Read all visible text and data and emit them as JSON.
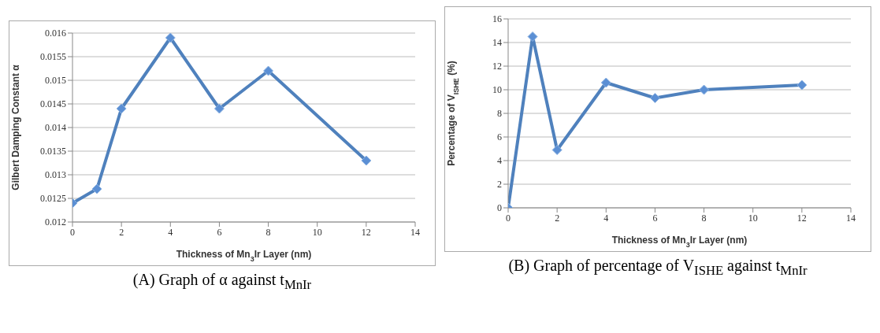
{
  "chart_data": [
    {
      "type": "line",
      "xlabel": "Thickness of Mn$_{3}$Ir Layer (nm)",
      "ylabel": "Gilbert Damping Constant α",
      "x": [
        0,
        1,
        2,
        4,
        6,
        8,
        12
      ],
      "series": [
        {
          "color": "#4f81bd",
          "values": [
            0.0124,
            0.0127,
            0.0144,
            0.0159,
            0.0144,
            0.0152,
            0.0133
          ]
        }
      ],
      "xlim": [
        0,
        14
      ],
      "xticks": [
        0,
        2,
        4,
        6,
        8,
        10,
        12,
        14
      ],
      "ylim": [
        0.012,
        0.016
      ],
      "yticks": [
        0.012,
        0.0125,
        0.013,
        0.0135,
        0.014,
        0.0145,
        0.015,
        0.0155,
        0.016
      ],
      "grid": "y",
      "marker": "diamond",
      "line_style": "solid",
      "legend": false,
      "annotations": [
        "(A) Graph of α against t$_{MnIr}$"
      ]
    },
    {
      "type": "line",
      "xlabel": "Thickness of Mn$_{3}$Ir Layer (nm)",
      "ylabel": "Percentage of V$_{ISHE}$ (%)",
      "x": [
        0,
        1,
        2,
        4,
        6,
        8,
        12
      ],
      "series": [
        {
          "color": "#4f81bd",
          "values": [
            0,
            14.5,
            4.9,
            10.6,
            9.3,
            10.0,
            10.4
          ]
        }
      ],
      "xlim": [
        0,
        14
      ],
      "xticks": [
        0,
        2,
        4,
        6,
        8,
        10,
        12,
        14
      ],
      "ylim": [
        0,
        16
      ],
      "yticks": [
        0,
        2,
        4,
        6,
        8,
        10,
        12,
        14,
        16
      ],
      "grid": "y",
      "marker": "diamond",
      "line_style": "solid",
      "legend": false,
      "annotations": [
        "(B) Graph of percentage of V$_{ISHE}$ against t$_{MnIr}$"
      ]
    }
  ]
}
